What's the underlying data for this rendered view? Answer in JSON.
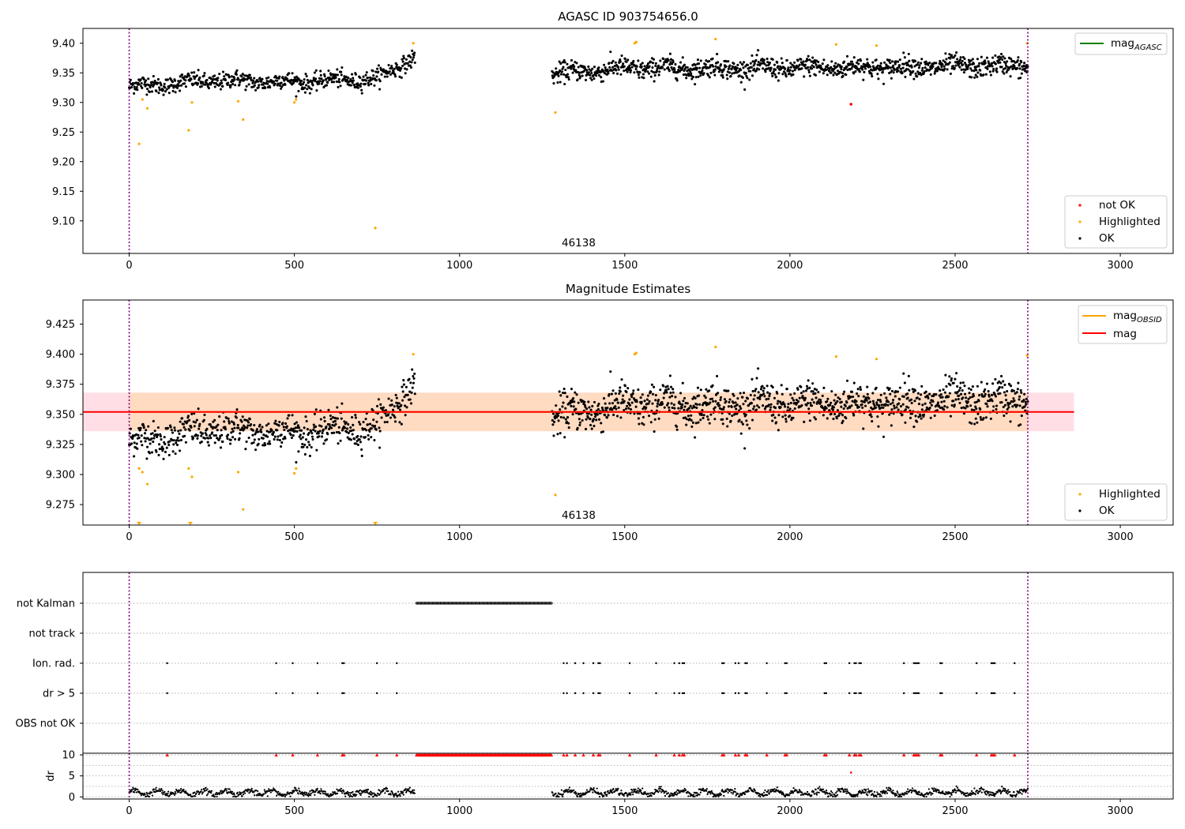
{
  "colors": {
    "ok": "#000000",
    "highlighted": "#ffa500",
    "not_ok": "#ff0000",
    "mag_agasc_line": "#008000",
    "mag_obsid_line": "#ffa500",
    "mag_line": "#ff0000",
    "band_obsid": "#ffdab9",
    "band_mag": "#ffc0cb",
    "obs_boundary": "#800080",
    "grid": "#b0b0b0"
  },
  "chart_data": [
    {
      "type": "scatter",
      "title": "AGASC ID 903754656.0",
      "xlim": [
        -140,
        3160
      ],
      "ylim": [
        9.045,
        9.425
      ],
      "xticks": [
        0,
        500,
        1000,
        1500,
        2000,
        2500,
        3000
      ],
      "yticks": [
        9.1,
        9.15,
        9.2,
        9.25,
        9.3,
        9.35,
        9.4
      ],
      "ytick_labels": [
        "9.10",
        "9.15",
        "9.20",
        "9.25",
        "9.30",
        "9.35",
        "9.40"
      ],
      "obs_boundaries": [
        0,
        2720
      ],
      "annotation": {
        "text": "46138",
        "x": 1310,
        "y": 9.072
      },
      "legend_lines": [
        {
          "label": "mag",
          "sub": "AGASC",
          "color": "#008000"
        }
      ],
      "legend_points": [
        {
          "label": "not OK",
          "color": "#ff0000"
        },
        {
          "label": "Highlighted",
          "color": "#ffa500"
        },
        {
          "label": "OK",
          "color": "#000000"
        }
      ],
      "series": [
        {
          "name": "OK",
          "segments": [
            {
              "x_range": [
                0,
                865
              ],
              "y_trend": [
                [
                  0,
                  9.327
                ],
                [
                  250,
                  9.337
                ],
                [
                  500,
                  9.335
                ],
                [
                  750,
                  9.34
                ],
                [
                  865,
                  9.378
                ]
              ],
              "scatter": 0.012,
              "count": 600
            },
            {
              "x_range": [
                1280,
                2720
              ],
              "y_trend": [
                [
                  1280,
                  9.348
                ],
                [
                  1500,
                  9.358
                ],
                [
                  2000,
                  9.358
                ],
                [
                  2720,
                  9.362
                ]
              ],
              "scatter": 0.014,
              "count": 1100
            }
          ]
        },
        {
          "name": "Highlighted",
          "points": [
            [
              30,
              9.23
            ],
            [
              40,
              9.305
            ],
            [
              55,
              9.29
            ],
            [
              180,
              9.253
            ],
            [
              190,
              9.3
            ],
            [
              330,
              9.302
            ],
            [
              345,
              9.271
            ],
            [
              500,
              9.3
            ],
            [
              505,
              9.305
            ],
            [
              745,
              9.088
            ],
            [
              860,
              9.4
            ],
            [
              1290,
              9.283
            ],
            [
              1530,
              9.4
            ],
            [
              1535,
              9.402
            ],
            [
              1775,
              9.407
            ],
            [
              2140,
              9.398
            ],
            [
              2262,
              9.396
            ],
            [
              2718,
              9.4
            ]
          ]
        },
        {
          "name": "not OK",
          "points": [
            [
              2185,
              9.297
            ]
          ]
        }
      ]
    },
    {
      "type": "scatter",
      "title": "Magnitude Estimates",
      "xlim": [
        -140,
        3160
      ],
      "ylim": [
        9.258,
        9.445
      ],
      "xticks": [
        0,
        500,
        1000,
        1500,
        2000,
        2500,
        3000
      ],
      "yticks": [
        9.275,
        9.3,
        9.325,
        9.35,
        9.375,
        9.4,
        9.425
      ],
      "ytick_labels": [
        "9.275",
        "9.300",
        "9.325",
        "9.350",
        "9.375",
        "9.400",
        "9.425"
      ],
      "obs_boundaries": [
        0,
        2720
      ],
      "mag_line": 9.352,
      "mag_band": [
        9.336,
        9.368
      ],
      "annotation": {
        "text": "46138",
        "x": 1310,
        "y": 9.265
      },
      "legend_lines": [
        {
          "label": "mag",
          "sub": "OBSID",
          "color": "#ffa500"
        },
        {
          "label": "mag",
          "sub": "",
          "color": "#ff0000"
        }
      ],
      "legend_points": [
        {
          "label": "Highlighted",
          "color": "#ffa500"
        },
        {
          "label": "OK",
          "color": "#000000"
        }
      ],
      "highlighted_points": [
        [
          30,
          9.305
        ],
        [
          40,
          9.302
        ],
        [
          55,
          9.292
        ],
        [
          180,
          9.305
        ],
        [
          190,
          9.298
        ],
        [
          330,
          9.302
        ],
        [
          345,
          9.271
        ],
        [
          500,
          9.301
        ],
        [
          505,
          9.305
        ],
        [
          860,
          9.4
        ],
        [
          1290,
          9.283
        ],
        [
          1530,
          9.4
        ],
        [
          1535,
          9.401
        ],
        [
          1775,
          9.406
        ],
        [
          2140,
          9.398
        ],
        [
          2262,
          9.396
        ],
        [
          2718,
          9.399
        ]
      ],
      "clipped_markers_x": [
        30,
        185,
        745
      ]
    },
    {
      "type": "scatter",
      "title": "",
      "xlim": [
        -140,
        3160
      ],
      "flag_rows": [
        "not Kalman",
        "not track",
        "Ion. rad.",
        "dr > 5",
        "OBS not OK"
      ],
      "obs_boundaries": [
        0,
        2720
      ],
      "not_kalman_range": [
        870,
        1280
      ],
      "event_x": [
        115,
        445,
        495,
        570,
        645,
        650,
        750,
        810,
        1315,
        1325,
        1350,
        1375,
        1405,
        1420,
        1425,
        1515,
        1595,
        1650,
        1665,
        1675,
        1680,
        1795,
        1800,
        1835,
        1845,
        1865,
        1870,
        1930,
        1985,
        1990,
        2105,
        2110,
        2180,
        2195,
        2200,
        2210,
        2215,
        2345,
        2375,
        2380,
        2385,
        2390,
        2455,
        2460,
        2565,
        2610,
        2615,
        2620,
        2680
      ]
    },
    {
      "type": "scatter",
      "title": "",
      "ylabel": "dr",
      "xlim": [
        -140,
        3160
      ],
      "ylim": [
        -0.5,
        10.4
      ],
      "yticks": [
        0,
        5,
        10
      ],
      "ytick_labels": [
        "0",
        "5",
        "10"
      ],
      "xticks": [
        0,
        500,
        1000,
        1500,
        2000,
        2500,
        3000
      ],
      "obs_boundaries": [
        0,
        2720
      ],
      "dr_segments": [
        [
          0,
          865
        ],
        [
          1280,
          2720
        ]
      ],
      "outlier": [
        2185,
        5.8
      ]
    }
  ]
}
